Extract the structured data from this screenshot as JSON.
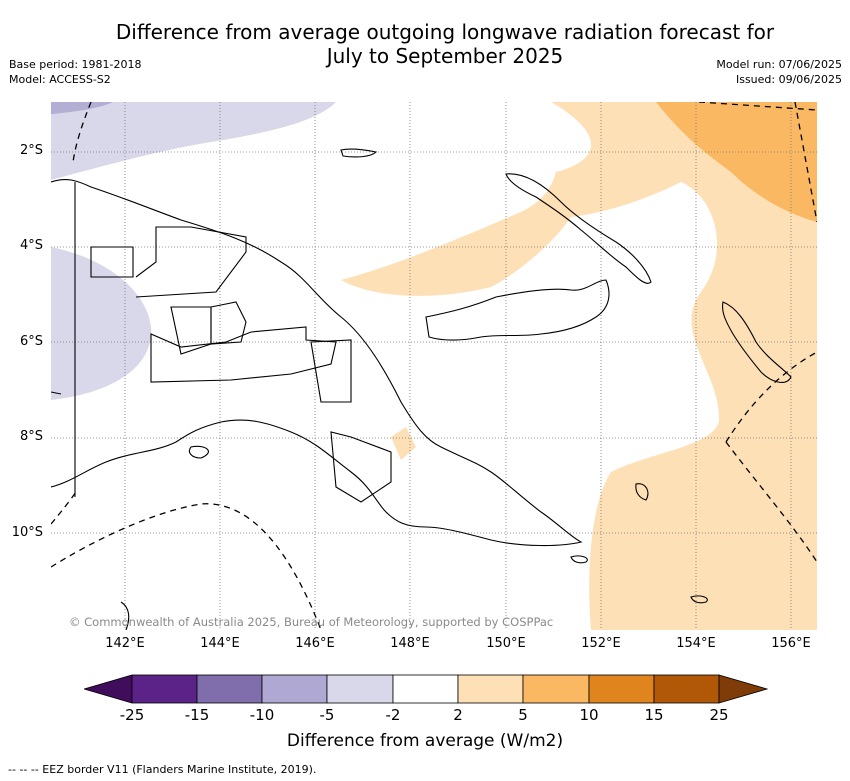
{
  "title": {
    "line1": "Difference from average outgoing longwave radiation forecast for",
    "line2": "July to September 2025"
  },
  "meta": {
    "base_period": "Base period: 1981-2018",
    "model": "Model: ACCESS-S2",
    "model_run": "Model run: 07/06/2025",
    "issued": "Issued: 09/06/2025"
  },
  "map": {
    "lat_labels": [
      "2°S",
      "4°S",
      "6°S",
      "8°S",
      "10°S"
    ],
    "lon_labels": [
      "142°E",
      "144°E",
      "146°E",
      "148°E",
      "150°E",
      "152°E",
      "154°E",
      "156°E"
    ],
    "credit": "© Commonwealth of Australia 2025, Bureau of Meteorology, supported by COSPPac"
  },
  "colorbar": {
    "ticks": [
      "-25",
      "-15",
      "-10",
      "-5",
      "-2",
      "2",
      "5",
      "10",
      "15",
      "25"
    ],
    "colors": [
      "#3f0d5c",
      "#5b2388",
      "#7f6eab",
      "#aea8d2",
      "#d8d8ea",
      "#ffffff",
      "#fde0b6",
      "#fbb862",
      "#e0841d",
      "#b05806",
      "#7f3b08"
    ],
    "label": "Difference from average (W/m2)"
  },
  "legend": {
    "eez": "--  --  -- EEZ border V11 (Flanders Marine Institute, 2019)."
  }
}
